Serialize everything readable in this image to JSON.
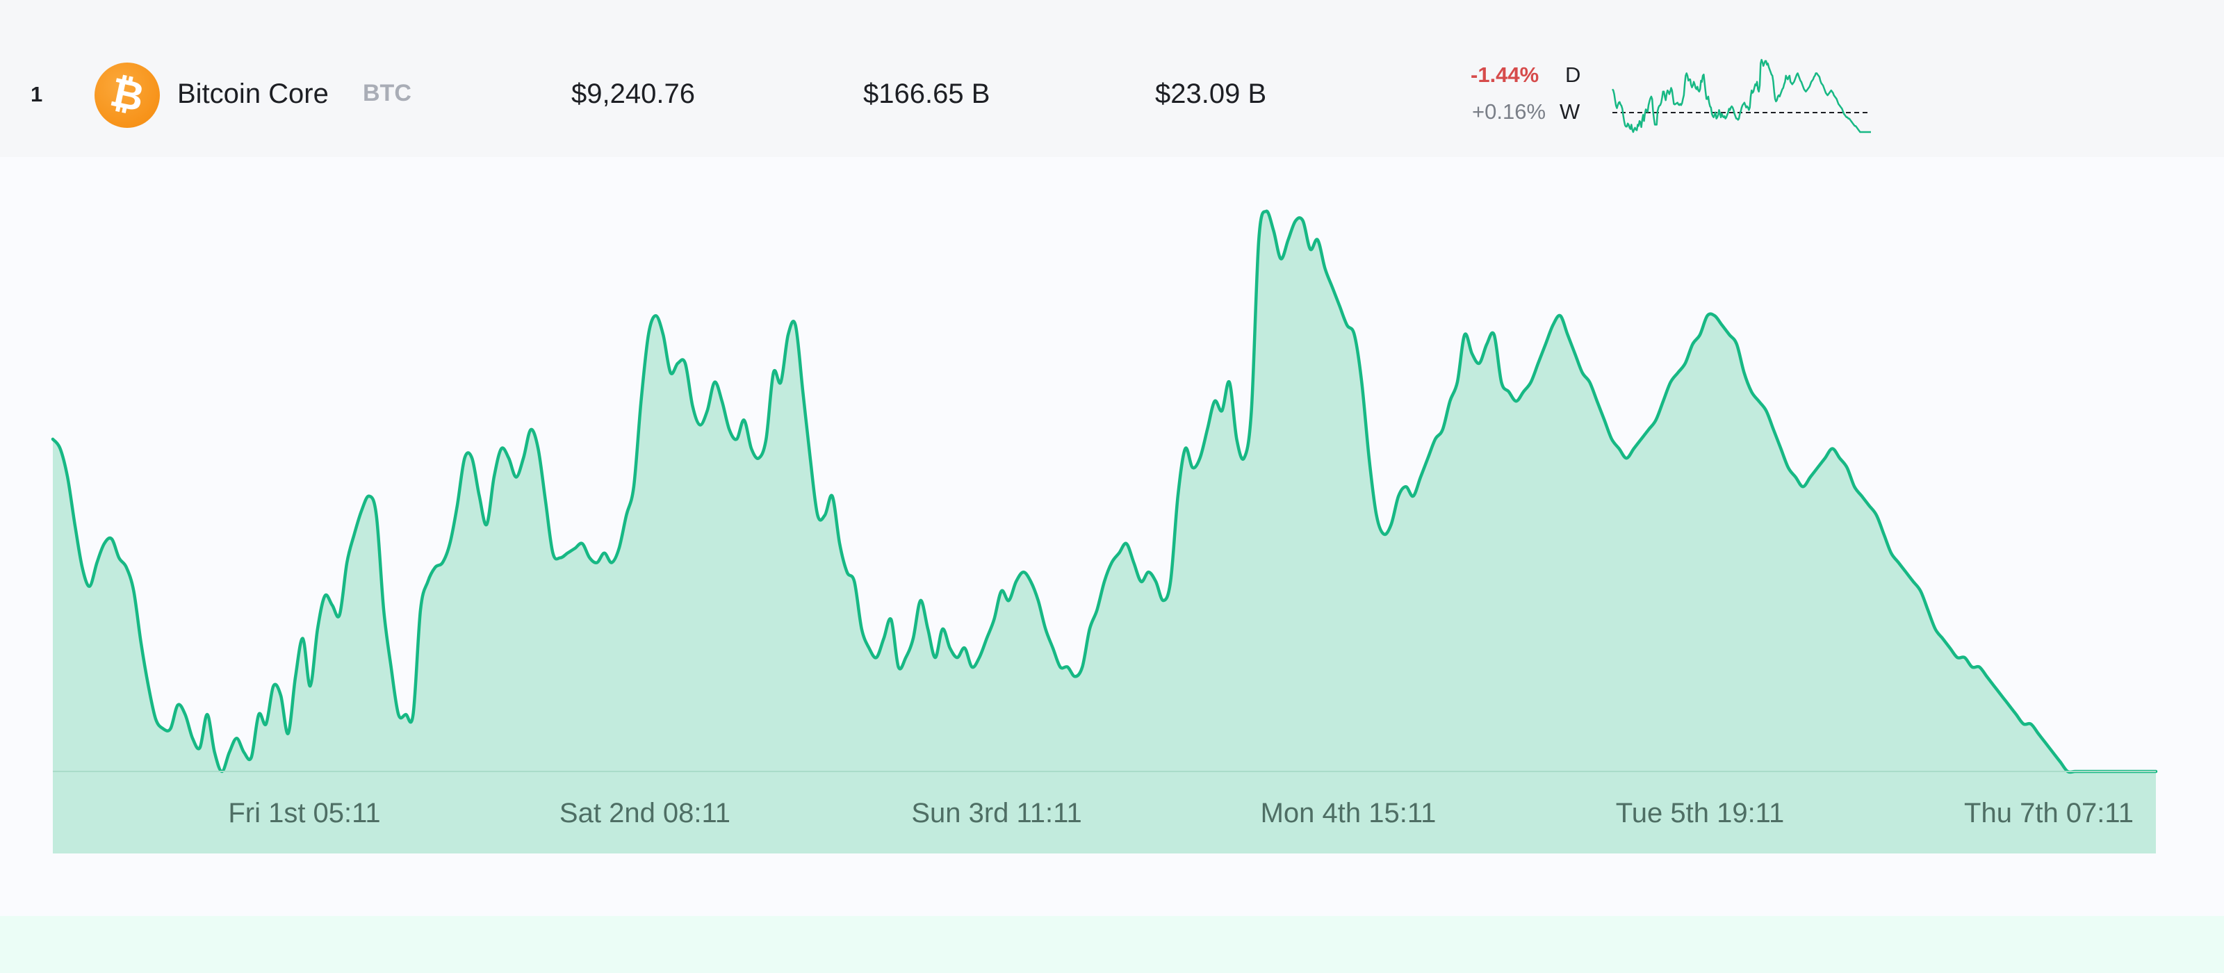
{
  "coin_row": {
    "rank": "1",
    "name": "Bitcoin Core",
    "symbol": "BTC",
    "price": "$9,240.76",
    "market_cap": "$166.65 B",
    "volume": "$23.09 B",
    "change_day": "-1.44%",
    "change_day_label": "D",
    "change_week": "+0.16%",
    "change_week_label": "W",
    "icon": "bitcoin-icon",
    "colors": {
      "icon_orange": "#f7931a",
      "negative": "#d64b4b",
      "line_green": "#17b884",
      "fill_green": "#c2ebdd"
    }
  },
  "chart_data": {
    "type": "area",
    "x_tick_labels": [
      "Fri 1st 05:11",
      "Sat 2nd 08:11",
      "Sun 3rd 11:11",
      "Mon 4th 15:11",
      "Tue 5th 19:11",
      "Thu 7th 07:11"
    ],
    "grid": false,
    "values": [
      70,
      68,
      62,
      52,
      43,
      39,
      44,
      48,
      49,
      45,
      43,
      38,
      27,
      18,
      11,
      9,
      9,
      14,
      12,
      7,
      5,
      12,
      4,
      0,
      4,
      7,
      4,
      3,
      12,
      10,
      18,
      16,
      8,
      20,
      28,
      18,
      30,
      37,
      35,
      33,
      44,
      50,
      55,
      58,
      54,
      34,
      22,
      12,
      12,
      12,
      34,
      40,
      43,
      44,
      48,
      56,
      66,
      66,
      58,
      52,
      62,
      68,
      66,
      62,
      66,
      72,
      68,
      57,
      46,
      45,
      46,
      47,
      48,
      45,
      44,
      46,
      44,
      47,
      54,
      60,
      78,
      92,
      96,
      92,
      84,
      86,
      86,
      77,
      73,
      76,
      82,
      78,
      72,
      70,
      74,
      68,
      66,
      70,
      84,
      82,
      92,
      94,
      80,
      66,
      54,
      54,
      58,
      48,
      42,
      40,
      30,
      26,
      24,
      28,
      32,
      22,
      24,
      28,
      36,
      30,
      24,
      30,
      26,
      24,
      26,
      22,
      24,
      28,
      32,
      38,
      36,
      40,
      42,
      40,
      36,
      30,
      26,
      22,
      22,
      20,
      22,
      30,
      34,
      40,
      44,
      46,
      48,
      44,
      40,
      42,
      40,
      36,
      40,
      58,
      68,
      64,
      66,
      72,
      78,
      76,
      82,
      70,
      66,
      76,
      112,
      118,
      114,
      108,
      112,
      116,
      116,
      110,
      112,
      106,
      102,
      98,
      94,
      92,
      82,
      66,
      54,
      50,
      52,
      58,
      60,
      58,
      62,
      66,
      70,
      72,
      78,
      82,
      92,
      88,
      86,
      90,
      92,
      82,
      80,
      78,
      80,
      82,
      86,
      90,
      94,
      96,
      92,
      88,
      84,
      82,
      78,
      74,
      70,
      68,
      66,
      68,
      70,
      72,
      74,
      78,
      82,
      84,
      86,
      90,
      92,
      96,
      96,
      94,
      92,
      90,
      84,
      80,
      78,
      76,
      72,
      68,
      64,
      62,
      60,
      62,
      64,
      66,
      68,
      66,
      64,
      60,
      58,
      56,
      54,
      50,
      46,
      44,
      42,
      40,
      38,
      34,
      30,
      28,
      26,
      24,
      24,
      22,
      22,
      20,
      18,
      16,
      14,
      12,
      10,
      10,
      8,
      6,
      4,
      2,
      0,
      0,
      0,
      0,
      0,
      0,
      0,
      0,
      0,
      0,
      0,
      0,
      0
    ]
  }
}
